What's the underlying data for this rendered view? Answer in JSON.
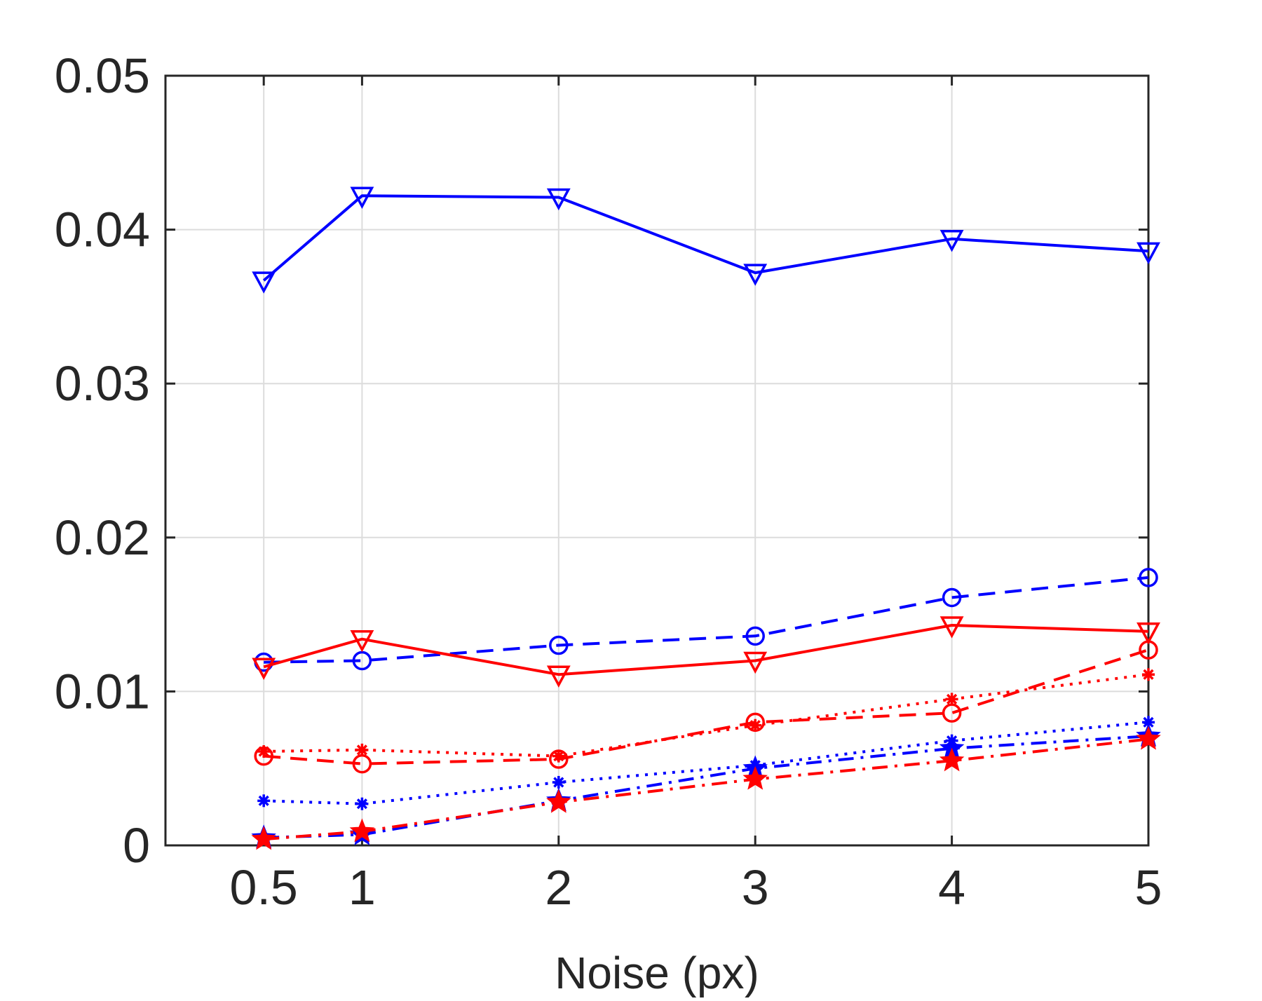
{
  "chart_data": {
    "type": "line",
    "title": "",
    "xlabel": "Noise (px)",
    "ylabel": "",
    "xlim": [
      0,
      5
    ],
    "ylim": [
      0,
      0.05
    ],
    "grid": true,
    "x": [
      0.5,
      1,
      2,
      3,
      4,
      5
    ],
    "xticks": [
      {
        "value": 0.5,
        "label": "0.5"
      },
      {
        "value": 1,
        "label": "1"
      },
      {
        "value": 2,
        "label": "2"
      },
      {
        "value": 3,
        "label": "3"
      },
      {
        "value": 4,
        "label": "4"
      },
      {
        "value": 5,
        "label": "5"
      }
    ],
    "yticks": [
      {
        "value": 0,
        "label": "0"
      },
      {
        "value": 0.01,
        "label": "0.01"
      },
      {
        "value": 0.02,
        "label": "0.02"
      },
      {
        "value": 0.03,
        "label": "0.03"
      },
      {
        "value": 0.04,
        "label": "0.04"
      },
      {
        "value": 0.05,
        "label": "0.05"
      }
    ],
    "series": [
      {
        "id": "blue-triangle-solid",
        "color": "#0000ff",
        "line": "solid",
        "marker": "triangle-down",
        "values": [
          0.0367,
          0.0422,
          0.0421,
          0.0372,
          0.0394,
          0.0386
        ]
      },
      {
        "id": "blue-circle-dashed",
        "color": "#0000ff",
        "line": "dashed",
        "marker": "circle",
        "values": [
          0.0119,
          0.012,
          0.013,
          0.0136,
          0.0161,
          0.0174
        ]
      },
      {
        "id": "red-triangle-solid",
        "color": "#ff0000",
        "line": "solid",
        "marker": "triangle-down",
        "values": [
          0.0116,
          0.0134,
          0.0111,
          0.012,
          0.0143,
          0.0139
        ]
      },
      {
        "id": "red-circle-dashed",
        "color": "#ff0000",
        "line": "dashed",
        "marker": "circle",
        "values": [
          0.0058,
          0.0053,
          0.0056,
          0.008,
          0.0086,
          0.0127
        ]
      },
      {
        "id": "red-asterisk-dotted",
        "color": "#ff0000",
        "line": "dotted",
        "marker": "asterisk",
        "values": [
          0.0061,
          0.0062,
          0.0058,
          0.0078,
          0.0095,
          0.0111
        ]
      },
      {
        "id": "blue-asterisk-dotted",
        "color": "#0000ff",
        "line": "dotted",
        "marker": "asterisk",
        "values": [
          0.0029,
          0.0027,
          0.0041,
          0.0052,
          0.0068,
          0.008
        ]
      },
      {
        "id": "blue-star-dashdot",
        "color": "#0000ff",
        "line": "dashdot",
        "marker": "star",
        "values": [
          0.0005,
          0.0007,
          0.0029,
          0.005,
          0.0063,
          0.0071
        ]
      },
      {
        "id": "red-star-dashdot",
        "color": "#ff0000",
        "line": "dashdot",
        "marker": "star",
        "values": [
          0.0004,
          0.0009,
          0.0028,
          0.0043,
          0.0055,
          0.0069
        ]
      }
    ]
  }
}
